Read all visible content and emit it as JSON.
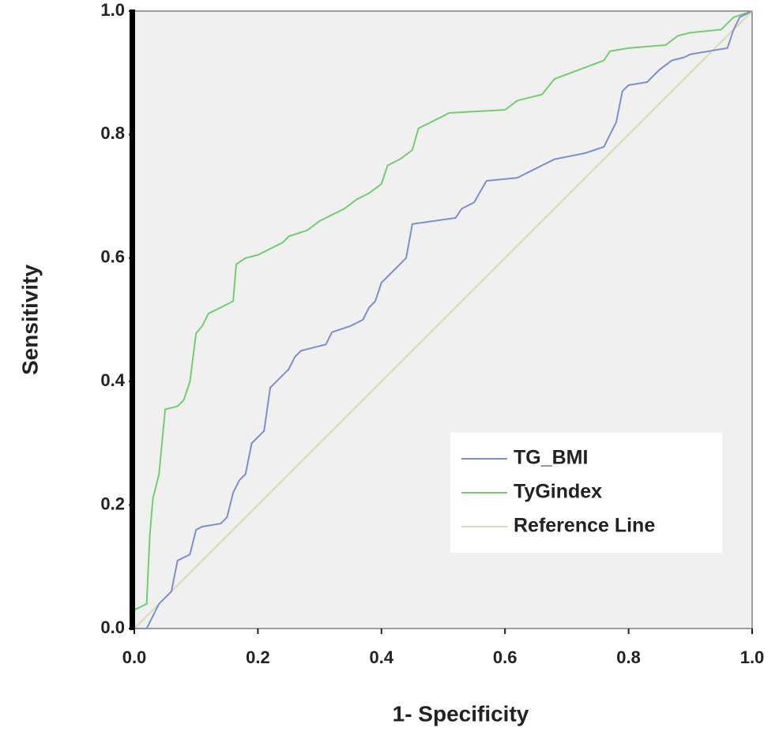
{
  "chart_data": {
    "type": "line",
    "xlabel": "1- Specificity",
    "ylabel": "Sensitivity",
    "xlim": [
      0,
      1
    ],
    "ylim": [
      0,
      1
    ],
    "xticks": [
      {
        "value": 0,
        "label": "0.0"
      },
      {
        "value": 0.2,
        "label": "0.2"
      },
      {
        "value": 0.4,
        "label": "0.4"
      },
      {
        "value": 0.6,
        "label": "0.6"
      },
      {
        "value": 0.8,
        "label": "0.8"
      },
      {
        "value": 1,
        "label": "1.0"
      }
    ],
    "yticks": [
      {
        "value": 0,
        "label": "0.0"
      },
      {
        "value": 0.2,
        "label": "0.2"
      },
      {
        "value": 0.4,
        "label": "0.4"
      },
      {
        "value": 0.6,
        "label": "0.6"
      },
      {
        "value": 0.8,
        "label": "0.8"
      },
      {
        "value": 1,
        "label": "1.0"
      }
    ],
    "legend": "lower right",
    "series": [
      {
        "name": "TG_BMI",
        "color": "#7b8fd0",
        "x": [
          0,
          0.02,
          0.03,
          0.04,
          0.05,
          0.06,
          0.07,
          0.09,
          0.1,
          0.11,
          0.14,
          0.15,
          0.16,
          0.17,
          0.18,
          0.19,
          0.21,
          0.22,
          0.23,
          0.25,
          0.26,
          0.27,
          0.29,
          0.31,
          0.32,
          0.35,
          0.37,
          0.38,
          0.39,
          0.4,
          0.41,
          0.43,
          0.44,
          0.45,
          0.52,
          0.53,
          0.55,
          0.57,
          0.62,
          0.64,
          0.66,
          0.68,
          0.73,
          0.76,
          0.78,
          0.79,
          0.8,
          0.83,
          0.85,
          0.87,
          0.89,
          0.9,
          0.96,
          0.97,
          0.98,
          1
        ],
        "values": [
          0,
          0,
          0.02,
          0.04,
          0.05,
          0.06,
          0.11,
          0.12,
          0.16,
          0.165,
          0.17,
          0.18,
          0.22,
          0.24,
          0.25,
          0.3,
          0.32,
          0.39,
          0.4,
          0.42,
          0.44,
          0.45,
          0.455,
          0.46,
          0.48,
          0.49,
          0.5,
          0.52,
          0.53,
          0.56,
          0.57,
          0.59,
          0.6,
          0.655,
          0.665,
          0.68,
          0.69,
          0.725,
          0.73,
          0.74,
          0.75,
          0.76,
          0.77,
          0.78,
          0.82,
          0.87,
          0.88,
          0.885,
          0.905,
          0.92,
          0.925,
          0.93,
          0.94,
          0.97,
          0.99,
          1
        ]
      },
      {
        "name": "TyGindex",
        "color": "#6fcf6f",
        "x": [
          0,
          0,
          0.02,
          0.025,
          0.03,
          0.04,
          0.05,
          0.07,
          0.08,
          0.09,
          0.1,
          0.11,
          0.12,
          0.14,
          0.16,
          0.165,
          0.18,
          0.2,
          0.22,
          0.24,
          0.25,
          0.28,
          0.3,
          0.32,
          0.34,
          0.36,
          0.38,
          0.4,
          0.41,
          0.43,
          0.45,
          0.46,
          0.5,
          0.51,
          0.6,
          0.62,
          0.66,
          0.68,
          0.72,
          0.76,
          0.77,
          0.8,
          0.86,
          0.88,
          0.9,
          0.95,
          0.97,
          1
        ],
        "values": [
          0,
          0.03,
          0.04,
          0.15,
          0.21,
          0.25,
          0.355,
          0.36,
          0.37,
          0.4,
          0.478,
          0.49,
          0.51,
          0.52,
          0.53,
          0.59,
          0.6,
          0.605,
          0.615,
          0.625,
          0.635,
          0.645,
          0.66,
          0.67,
          0.68,
          0.695,
          0.705,
          0.72,
          0.75,
          0.76,
          0.775,
          0.81,
          0.83,
          0.835,
          0.84,
          0.855,
          0.865,
          0.89,
          0.905,
          0.92,
          0.935,
          0.94,
          0.945,
          0.96,
          0.965,
          0.97,
          0.99,
          1
        ]
      },
      {
        "name": "Reference Line",
        "color": "#d9d9b3",
        "x": [
          0,
          1
        ],
        "values": [
          0,
          1
        ]
      }
    ]
  }
}
